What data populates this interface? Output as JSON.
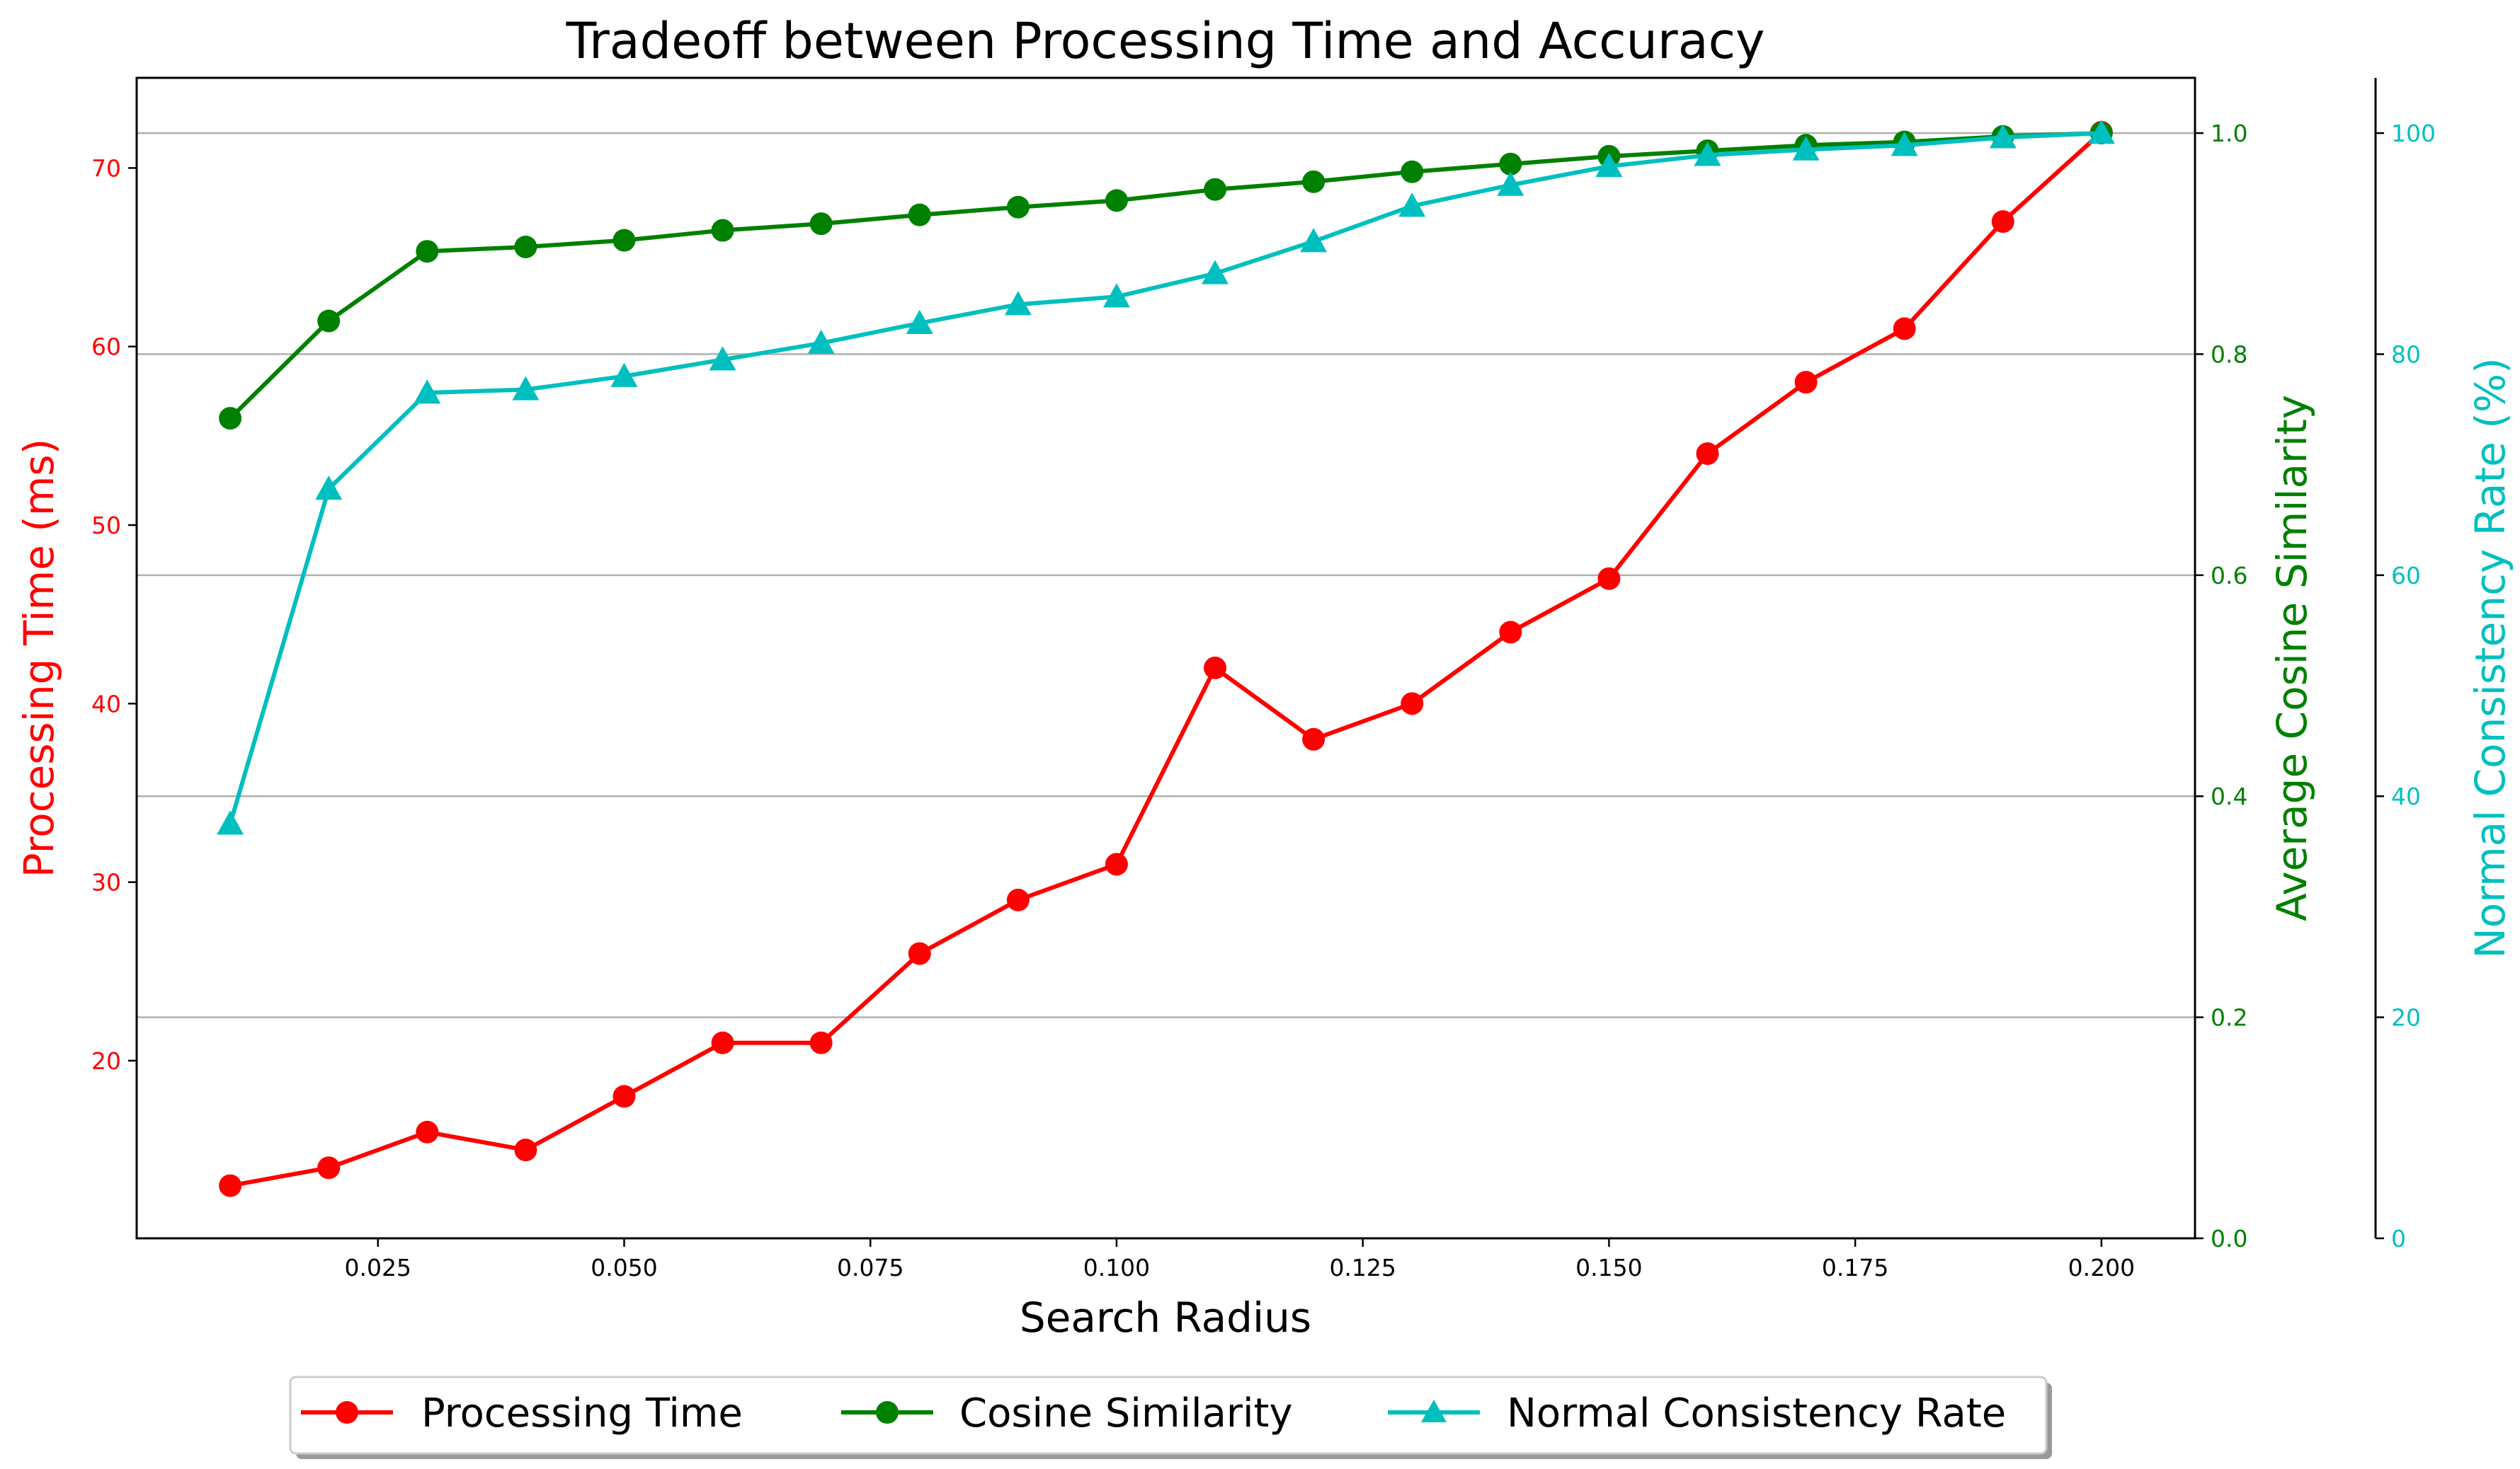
{
  "chart_data": {
    "type": "line",
    "title": "Tradeoff between Processing Time and Accuracy",
    "xlabel": "Search Radius",
    "x": [
      0.01,
      0.02,
      0.03,
      0.04,
      0.05,
      0.06,
      0.07,
      0.08,
      0.09,
      0.1,
      0.11,
      0.12,
      0.13,
      0.14,
      0.15,
      0.16,
      0.17,
      0.18,
      0.19,
      0.2
    ],
    "xlim": [
      0.0005,
      0.2095
    ],
    "xticks": [
      "0.025",
      "0.050",
      "0.075",
      "0.100",
      "0.125",
      "0.150",
      "0.175",
      "0.200"
    ],
    "xtick_values": [
      0.025,
      0.05,
      0.075,
      0.1,
      0.125,
      0.15,
      0.175,
      0.2
    ],
    "axes": {
      "left": {
        "label": "Processing Time (ms)",
        "color": "#ff0000",
        "ylim": [
          10.05,
          75.05
        ],
        "ticks": [
          "20",
          "30",
          "40",
          "50",
          "60",
          "70"
        ],
        "tick_values": [
          20,
          30,
          40,
          50,
          60,
          70
        ]
      },
      "right1": {
        "label": "Average Cosine Similarity",
        "color": "#008000",
        "ylim": [
          0.0,
          1.05
        ],
        "ticks": [
          "0.0",
          "0.2",
          "0.4",
          "0.6",
          "0.8",
          "1.0"
        ],
        "tick_values": [
          0.0,
          0.2,
          0.4,
          0.6,
          0.8,
          1.0
        ]
      },
      "right2": {
        "label": "Normal Consistency Rate (%)",
        "color": "#00bfbf",
        "ylim": [
          0,
          105
        ],
        "ticks": [
          "0",
          "20",
          "40",
          "60",
          "80",
          "100"
        ],
        "tick_values": [
          0,
          20,
          40,
          60,
          80,
          100
        ]
      }
    },
    "grid": "horizontal lines at right-axis ticks",
    "legend_position": "bottom-center",
    "series": [
      {
        "name": "Processing Time",
        "axis": "left",
        "color": "#ff0000",
        "marker": "circle",
        "values": [
          13,
          14,
          16,
          15,
          18,
          21,
          21,
          26,
          29,
          31,
          42,
          38,
          40,
          44,
          47,
          54,
          58,
          61,
          67,
          72
        ]
      },
      {
        "name": "Cosine Similarity",
        "axis": "right1",
        "color": "#008000",
        "marker": "circle",
        "values": [
          0.742,
          0.83,
          0.893,
          0.897,
          0.903,
          0.912,
          0.918,
          0.926,
          0.933,
          0.939,
          0.949,
          0.956,
          0.965,
          0.972,
          0.979,
          0.984,
          0.989,
          0.992,
          0.997,
          1.0
        ]
      },
      {
        "name": "Normal Consistency Rate",
        "axis": "right2",
        "color": "#00bfbf",
        "marker": "triangle",
        "values": [
          37.5,
          67.8,
          76.5,
          76.8,
          78.0,
          79.5,
          81.0,
          82.8,
          84.5,
          85.2,
          87.3,
          90.2,
          93.4,
          95.3,
          97.0,
          98.0,
          98.5,
          98.9,
          99.6,
          100.0
        ]
      }
    ]
  }
}
